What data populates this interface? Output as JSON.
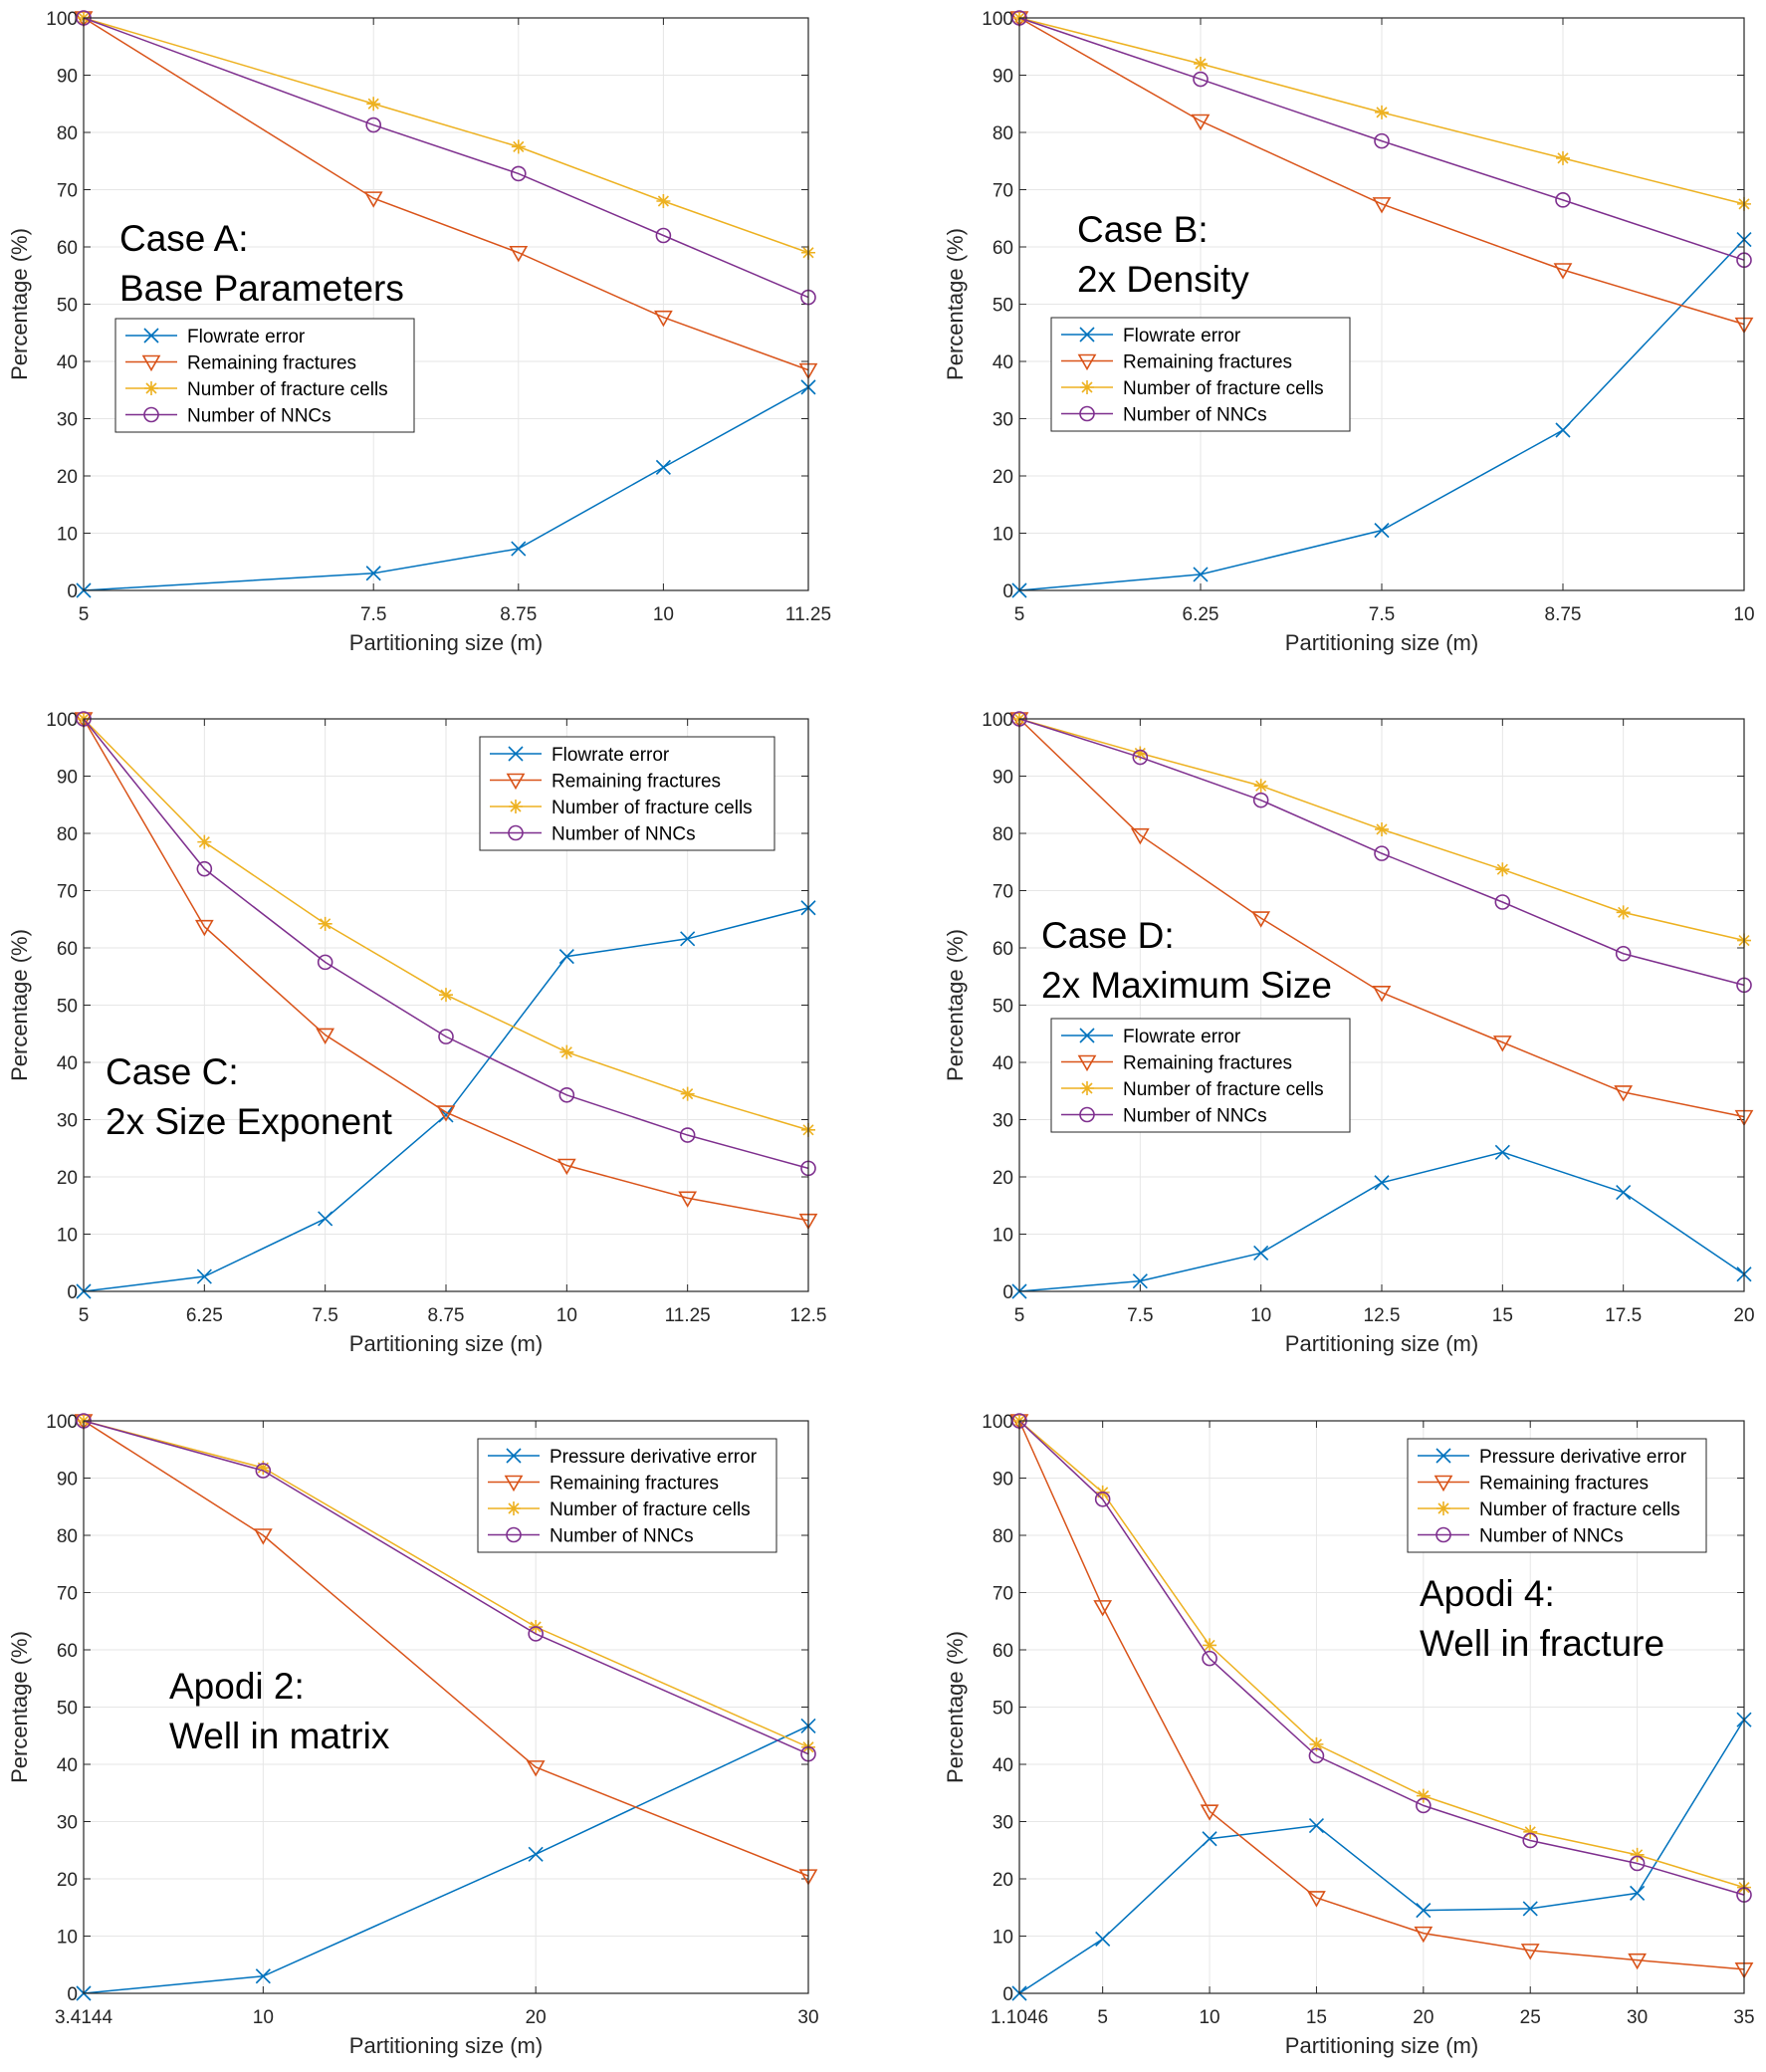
{
  "chart_data": [
    {
      "type": "line",
      "x": [
        5,
        7.5,
        8.75,
        10,
        11.25
      ],
      "xticks": [
        "5",
        "7.5",
        "8.75",
        "10",
        "11.25"
      ],
      "xlim": [
        5,
        11.25
      ],
      "ylim": [
        0,
        100
      ],
      "yticks": [
        "0",
        "10",
        "20",
        "30",
        "40",
        "50",
        "60",
        "70",
        "80",
        "90",
        "100"
      ],
      "xlabel": "Partitioning size (m)",
      "ylabel": "Percentage (%)",
      "annotation": [
        "Case A:",
        "Base Parameters"
      ],
      "legend_position": "middle-left",
      "series": [
        {
          "name": "Flowrate error",
          "color": "#0072BD",
          "marker": "x",
          "values": [
            0,
            3,
            7.3,
            21.5,
            35.5
          ]
        },
        {
          "name": "Remaining fractures",
          "color": "#D95319",
          "marker": "triangle-down",
          "values": [
            100,
            68.5,
            59,
            47.7,
            38.5
          ]
        },
        {
          "name": "Number of fracture cells",
          "color": "#EDB120",
          "marker": "star",
          "values": [
            100,
            85,
            77.5,
            68,
            59
          ]
        },
        {
          "name": "Number of NNCs",
          "color": "#7E2F8E",
          "marker": "circle",
          "values": [
            100,
            81.3,
            72.8,
            62,
            51.2
          ]
        }
      ]
    },
    {
      "type": "line",
      "x": [
        5,
        6.25,
        7.5,
        8.75,
        10
      ],
      "xticks": [
        "5",
        "6.25",
        "7.5",
        "8.75",
        "10"
      ],
      "xlim": [
        5,
        10
      ],
      "ylim": [
        0,
        100
      ],
      "yticks": [
        "0",
        "10",
        "20",
        "30",
        "40",
        "50",
        "60",
        "70",
        "80",
        "90",
        "100"
      ],
      "xlabel": "Partitioning size (m)",
      "ylabel": "Percentage (%)",
      "annotation": [
        "Case B:",
        "2x Density"
      ],
      "legend_position": "middle-left",
      "series": [
        {
          "name": "Flowrate error",
          "color": "#0072BD",
          "marker": "x",
          "values": [
            0,
            2.8,
            10.5,
            28,
            61.3
          ]
        },
        {
          "name": "Remaining fractures",
          "color": "#D95319",
          "marker": "triangle-down",
          "values": [
            100,
            82,
            67.5,
            56,
            46.5
          ]
        },
        {
          "name": "Number of fracture cells",
          "color": "#EDB120",
          "marker": "star",
          "values": [
            100,
            92,
            83.5,
            75.5,
            67.5
          ]
        },
        {
          "name": "Number of NNCs",
          "color": "#7E2F8E",
          "marker": "circle",
          "values": [
            100,
            89.3,
            78.5,
            68.2,
            57.7
          ]
        }
      ]
    },
    {
      "type": "line",
      "x": [
        5,
        6.25,
        7.5,
        8.75,
        10,
        11.25,
        12.5
      ],
      "xticks": [
        "5",
        "6.25",
        "7.5",
        "8.75",
        "10",
        "11.25",
        "12.5"
      ],
      "xlim": [
        5,
        12.5
      ],
      "ylim": [
        0,
        100
      ],
      "yticks": [
        "0",
        "10",
        "20",
        "30",
        "40",
        "50",
        "60",
        "70",
        "80",
        "90",
        "100"
      ],
      "xlabel": "Partitioning size (m)",
      "ylabel": "Percentage (%)",
      "annotation": [
        "Case C:",
        "2x Size Exponent"
      ],
      "legend_position": "top-right",
      "series": [
        {
          "name": "Flowrate error",
          "color": "#0072BD",
          "marker": "x",
          "values": [
            0,
            2.6,
            12.7,
            30.8,
            58.5,
            61.6,
            67
          ]
        },
        {
          "name": "Remaining fractures",
          "color": "#D95319",
          "marker": "triangle-down",
          "values": [
            100,
            63.7,
            44.8,
            31.3,
            22,
            16.3,
            12.4
          ]
        },
        {
          "name": "Number of fracture cells",
          "color": "#EDB120",
          "marker": "star",
          "values": [
            100,
            78.5,
            64.2,
            51.8,
            41.8,
            34.5,
            28.2
          ]
        },
        {
          "name": "Number of NNCs",
          "color": "#7E2F8E",
          "marker": "circle",
          "values": [
            100,
            73.8,
            57.5,
            44.5,
            34.3,
            27.3,
            21.5
          ]
        }
      ]
    },
    {
      "type": "line",
      "x": [
        5,
        7.5,
        10,
        12.5,
        15,
        17.5,
        20
      ],
      "xticks": [
        "5",
        "7.5",
        "10",
        "12.5",
        "15",
        "17.5",
        "20"
      ],
      "xlim": [
        5,
        20
      ],
      "ylim": [
        0,
        100
      ],
      "yticks": [
        "0",
        "10",
        "20",
        "30",
        "40",
        "50",
        "60",
        "70",
        "80",
        "90",
        "100"
      ],
      "xlabel": "Partitioning size (m)",
      "ylabel": "Percentage (%)",
      "annotation": [
        "Case D:",
        "2x Maximum Size"
      ],
      "legend_position": "middle-left",
      "series": [
        {
          "name": "Flowrate error",
          "color": "#0072BD",
          "marker": "x",
          "values": [
            0,
            1.8,
            6.7,
            19,
            24.3,
            17.3,
            3
          ]
        },
        {
          "name": "Remaining fractures",
          "color": "#D95319",
          "marker": "triangle-down",
          "values": [
            100,
            79.7,
            65.2,
            52.2,
            43.5,
            34.8,
            30.5
          ]
        },
        {
          "name": "Number of fracture cells",
          "color": "#EDB120",
          "marker": "star",
          "values": [
            100,
            94,
            88.3,
            80.7,
            73.7,
            66.2,
            61.3
          ]
        },
        {
          "name": "Number of NNCs",
          "color": "#7E2F8E",
          "marker": "circle",
          "values": [
            100,
            93.3,
            85.8,
            76.5,
            68,
            59,
            53.5
          ]
        }
      ]
    },
    {
      "type": "line",
      "x": [
        3.4144,
        10,
        20,
        30
      ],
      "xticks": [
        "3.4144",
        "10",
        "20",
        "30"
      ],
      "xlim": [
        3.4144,
        30
      ],
      "ylim": [
        0,
        100
      ],
      "yticks": [
        "0",
        "10",
        "20",
        "30",
        "40",
        "50",
        "60",
        "70",
        "80",
        "90",
        "100"
      ],
      "xlabel": "Partitioning size (m)",
      "ylabel": "Percentage (%)",
      "annotation": [
        "Apodi 2:",
        "Well in matrix"
      ],
      "legend_position": "top-right",
      "series": [
        {
          "name": "Pressure derivative error",
          "color": "#0072BD",
          "marker": "x",
          "values": [
            0,
            3,
            24.3,
            46.7
          ]
        },
        {
          "name": "Remaining fractures",
          "color": "#D95319",
          "marker": "triangle-down",
          "values": [
            100,
            80,
            39.5,
            20.5
          ]
        },
        {
          "name": "Number of fracture cells",
          "color": "#EDB120",
          "marker": "star",
          "values": [
            100,
            91.8,
            64,
            43
          ]
        },
        {
          "name": "Number of NNCs",
          "color": "#7E2F8E",
          "marker": "circle",
          "values": [
            100,
            91.3,
            62.8,
            41.8
          ]
        }
      ]
    },
    {
      "type": "line",
      "x": [
        1.1046,
        5,
        10,
        15,
        20,
        25,
        30,
        35
      ],
      "xticks": [
        "1.1046",
        "5",
        "10",
        "15",
        "20",
        "25",
        "30",
        "35"
      ],
      "xlim": [
        1.1046,
        35
      ],
      "ylim": [
        0,
        100
      ],
      "yticks": [
        "0",
        "10",
        "20",
        "30",
        "40",
        "50",
        "60",
        "70",
        "80",
        "90",
        "100"
      ],
      "xlabel": "Partitioning size (m)",
      "ylabel": "Percentage (%)",
      "annotation": [
        "Apodi 4:",
        "Well in fracture"
      ],
      "legend_position": "top-right",
      "series": [
        {
          "name": "Pressure derivative error",
          "color": "#0072BD",
          "marker": "x",
          "values": [
            0,
            9.5,
            27,
            29.3,
            14.5,
            14.8,
            17.5,
            47.8
          ]
        },
        {
          "name": "Remaining fractures",
          "color": "#D95319",
          "marker": "triangle-down",
          "values": [
            100,
            67.5,
            31.8,
            16.7,
            10.5,
            7.5,
            5.8,
            4.2
          ]
        },
        {
          "name": "Number of fracture cells",
          "color": "#EDB120",
          "marker": "star",
          "values": [
            100,
            87.5,
            60.8,
            43.5,
            34.5,
            28.2,
            24.2,
            18.5
          ]
        },
        {
          "name": "Number of NNCs",
          "color": "#7E2F8E",
          "marker": "circle",
          "values": [
            100,
            86.3,
            58.5,
            41.5,
            32.8,
            26.7,
            22.7,
            17.2
          ]
        }
      ]
    }
  ]
}
